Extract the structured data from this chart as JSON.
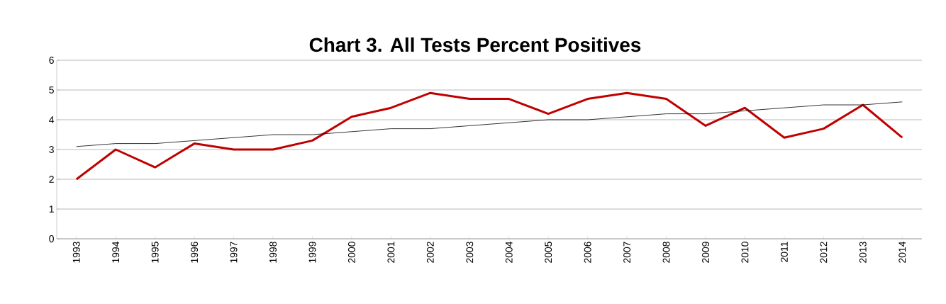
{
  "chart_data": {
    "type": "line",
    "title": "Chart 3. All Tests Percent Positives",
    "categories": [
      "1993",
      "1994",
      "1995",
      "1996",
      "1997",
      "1998",
      "1999",
      "2000",
      "2001",
      "2002",
      "2003",
      "2004",
      "2005",
      "2006",
      "2007",
      "2008",
      "2009",
      "2010",
      "2011",
      "2012",
      "2013",
      "2014"
    ],
    "series": [
      {
        "color": "#c00000",
        "values": [
          2.0,
          3.0,
          2.4,
          3.2,
          3.0,
          3.0,
          3.3,
          4.1,
          4.4,
          4.9,
          4.7,
          4.7,
          4.2,
          4.7,
          4.9,
          4.7,
          3.8,
          4.4,
          3.4,
          3.7,
          4.5,
          3.4
        ]
      },
      {
        "color": "#000000",
        "values": [
          3.1,
          3.2,
          3.2,
          3.3,
          3.4,
          3.5,
          3.5,
          3.6,
          3.7,
          3.7,
          3.8,
          3.9,
          4.0,
          4.0,
          4.1,
          4.2,
          4.2,
          4.3,
          4.4,
          4.5,
          4.5,
          4.6
        ]
      }
    ],
    "ylim": [
      0,
      6
    ],
    "yticks": [
      0,
      1,
      2,
      3,
      4,
      5,
      6
    ],
    "grid": "y",
    "marker": "none"
  }
}
